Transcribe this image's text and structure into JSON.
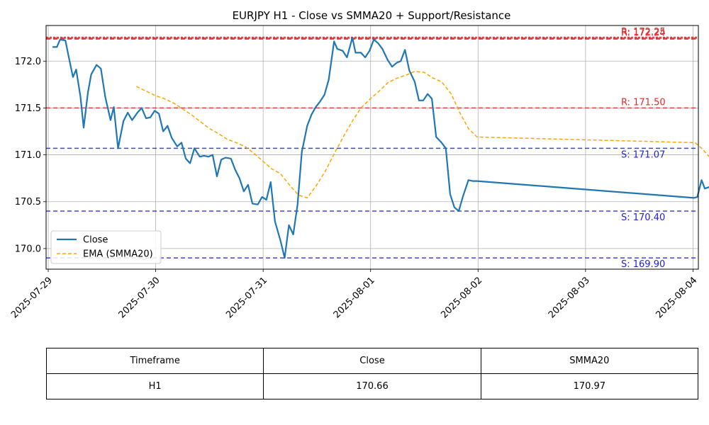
{
  "chart_data": {
    "type": "line",
    "title": "EURJPY H1 - Close vs SMMA20 + Support/Resistance",
    "xlabel": "",
    "ylabel": "",
    "x_ticks": [
      "2025-07-29",
      "2025-07-30",
      "2025-07-31",
      "2025-08-01",
      "2025-08-02",
      "2025-08-03",
      "2025-08-04"
    ],
    "y_ticks": [
      "170.0",
      "170.5",
      "171.0",
      "171.5",
      "172.0"
    ],
    "ylim": [
      169.78,
      172.38
    ],
    "xlim": [
      -0.02,
      6.05
    ],
    "grid": true,
    "legend_position": "lower-left",
    "series": [
      {
        "name": "Close",
        "color": "#1f77b4",
        "style": "solid",
        "x": [
          0.04,
          0.08,
          0.11,
          0.16,
          0.19,
          0.23,
          0.26,
          0.3,
          0.33,
          0.37,
          0.4,
          0.45,
          0.49,
          0.53,
          0.58,
          0.61,
          0.65,
          0.7,
          0.74,
          0.78,
          0.83,
          0.87,
          0.91,
          0.95,
          0.99,
          1.03,
          1.07,
          1.11,
          1.15,
          1.2,
          1.24,
          1.28,
          1.32,
          1.36,
          1.41,
          1.45,
          1.49,
          1.53,
          1.57,
          1.61,
          1.65,
          1.7,
          1.74,
          1.78,
          1.82,
          1.86,
          1.9,
          1.95,
          1.99,
          2.03,
          2.07,
          2.11,
          2.16,
          2.2,
          2.24,
          2.28,
          2.32,
          2.36,
          2.41,
          2.45,
          2.49,
          2.53,
          2.57,
          2.61,
          2.66,
          2.69,
          2.74,
          2.78,
          2.83,
          2.86,
          2.91,
          2.95,
          2.99,
          3.03,
          3.07,
          3.11,
          3.16,
          3.2,
          3.24,
          3.28,
          3.32,
          3.36,
          3.41,
          3.45,
          3.49,
          3.53,
          3.57,
          3.61,
          3.66,
          3.7,
          3.74,
          3.78,
          3.82,
          3.86,
          3.91,
          3.95,
          3.99,
          6.01,
          6.04,
          6.08,
          6.11,
          6.16
        ],
        "y": [
          172.15,
          172.15,
          172.23,
          172.22,
          172.05,
          171.83,
          171.91,
          171.62,
          171.29,
          171.67,
          171.86,
          171.96,
          171.92,
          171.62,
          171.37,
          171.51,
          171.07,
          171.36,
          171.45,
          171.37,
          171.45,
          171.5,
          171.39,
          171.4,
          171.47,
          171.44,
          171.25,
          171.31,
          171.18,
          171.09,
          171.13,
          170.96,
          170.91,
          171.07,
          170.98,
          170.99,
          170.98,
          171.0,
          170.77,
          170.95,
          170.97,
          170.96,
          170.84,
          170.75,
          170.61,
          170.68,
          170.48,
          170.47,
          170.55,
          170.52,
          170.71,
          170.29,
          170.09,
          169.9,
          170.25,
          170.15,
          170.47,
          171.03,
          171.31,
          171.43,
          171.51,
          171.57,
          171.64,
          171.8,
          172.21,
          172.13,
          172.11,
          172.04,
          172.25,
          172.09,
          172.09,
          172.04,
          172.11,
          172.23,
          172.19,
          172.13,
          172.01,
          171.94,
          171.98,
          172.0,
          172.12,
          171.9,
          171.78,
          171.58,
          171.58,
          171.65,
          171.6,
          171.19,
          171.13,
          171.07,
          170.58,
          170.44,
          170.4,
          170.56,
          170.73,
          170.72,
          170.72,
          170.54,
          170.55,
          170.73,
          170.64,
          170.66
        ]
      },
      {
        "name": "EMA (SMMA20)",
        "color": "#ffa500",
        "style": "dashed",
        "x": [
          0.82,
          0.91,
          1.0,
          1.08,
          1.17,
          1.25,
          1.33,
          1.42,
          1.5,
          1.58,
          1.66,
          1.75,
          1.83,
          1.91,
          2.0,
          2.08,
          2.16,
          2.25,
          2.33,
          2.41,
          2.5,
          2.58,
          2.66,
          2.75,
          2.83,
          2.91,
          3.0,
          3.08,
          3.16,
          3.25,
          3.33,
          3.41,
          3.5,
          3.58,
          3.66,
          3.75,
          3.83,
          3.91,
          3.99,
          6.02,
          6.08,
          6.16
        ],
        "y": [
          171.73,
          171.68,
          171.63,
          171.6,
          171.55,
          171.49,
          171.43,
          171.35,
          171.28,
          171.23,
          171.17,
          171.13,
          171.09,
          171.02,
          170.93,
          170.85,
          170.8,
          170.67,
          170.57,
          170.54,
          170.68,
          170.83,
          171.01,
          171.2,
          171.36,
          171.5,
          171.6,
          171.68,
          171.77,
          171.82,
          171.85,
          171.89,
          171.88,
          171.82,
          171.78,
          171.65,
          171.45,
          171.28,
          171.19,
          171.13,
          171.07,
          170.97
        ]
      }
    ],
    "hlines": [
      {
        "label": "R: 172.25",
        "value": 172.25,
        "color": "#e8262a",
        "style": "dotted",
        "width": 3
      },
      {
        "label": "R: 172.24",
        "value": 172.24,
        "color": "#e8262a",
        "style": "dashed",
        "width": 3
      },
      {
        "label": "R: 171.50",
        "value": 171.5,
        "color": "#e8262a",
        "style": "dashed",
        "width": 1.5
      },
      {
        "label": "S: 171.07",
        "value": 171.07,
        "color": "#2020e8",
        "style": "dashed",
        "width": 1.5
      },
      {
        "label": "S: 170.40",
        "value": 170.4,
        "color": "#2020e8",
        "style": "dashed",
        "width": 1.5
      },
      {
        "label": "S: 169.90",
        "value": 169.9,
        "color": "#2020e8",
        "style": "dashed",
        "width": 1.5
      }
    ]
  },
  "table": {
    "headers": [
      "Timeframe",
      "Close",
      "SMMA20"
    ],
    "row": [
      "H1",
      "170.66",
      "170.97"
    ]
  }
}
